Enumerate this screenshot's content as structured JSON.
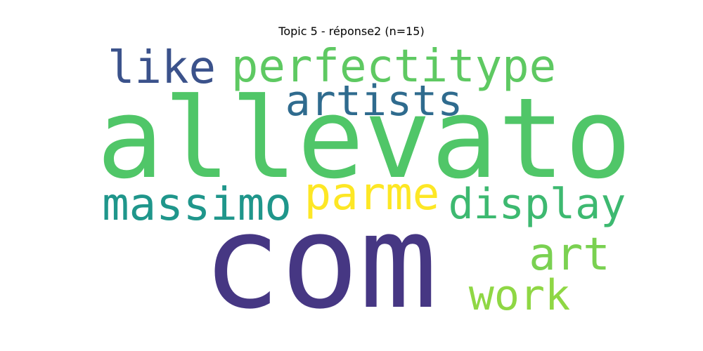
{
  "chart_data": {
    "type": "wordcloud",
    "title": "Topic 5 - réponse2 (n=15)",
    "words": [
      {
        "text": "allevato",
        "weight": 100,
        "color": "#50c668"
      },
      {
        "text": "com",
        "weight": 95,
        "color": "#463783"
      },
      {
        "text": "perfectitype",
        "weight": 32,
        "color": "#5ec962"
      },
      {
        "text": "like",
        "weight": 30,
        "color": "#3b528b"
      },
      {
        "text": "artists",
        "weight": 30,
        "color": "#2f6b8e"
      },
      {
        "text": "massimo",
        "weight": 30,
        "color": "#1f968b"
      },
      {
        "text": "parme",
        "weight": 30,
        "color": "#fde725"
      },
      {
        "text": "display",
        "weight": 30,
        "color": "#3db970"
      },
      {
        "text": "art",
        "weight": 30,
        "color": "#7ad151"
      },
      {
        "text": "work",
        "weight": 30,
        "color": "#8fd744"
      }
    ]
  }
}
